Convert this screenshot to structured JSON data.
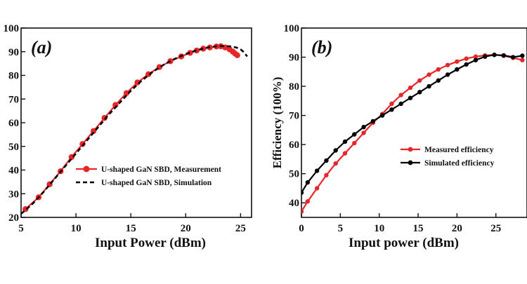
{
  "chart_data": [
    {
      "type": "line",
      "panel_label": "(a)",
      "xlabel": "Input Power (dBm)",
      "ylabel": "",
      "xlim": [
        5,
        26
      ],
      "ylim": [
        20,
        100
      ],
      "x_ticks": [
        5,
        10,
        15,
        20,
        25
      ],
      "y_ticks": [
        20,
        30,
        40,
        50,
        60,
        70,
        80,
        90,
        100
      ],
      "grid": false,
      "legend_position": "center-right",
      "series": [
        {
          "name": "U-shaped GaN SBD, Measurement",
          "color": "#e8262a",
          "style": "solid-markers",
          "x": [
            5.4,
            6.6,
            7.6,
            8.6,
            9.6,
            10.6,
            11.6,
            12.6,
            13.6,
            14.6,
            15.6,
            16.6,
            17.6,
            18.6,
            19.6,
            20.4,
            21.0,
            21.6,
            22.2,
            22.8,
            23.2,
            23.6,
            24.0,
            24.3,
            24.5,
            24.7
          ],
          "y": [
            23.5,
            28.5,
            34,
            39.5,
            45.5,
            51,
            56.5,
            62,
            67.5,
            72.5,
            77,
            80.5,
            83.5,
            86,
            88,
            89.5,
            90.5,
            91.3,
            91.8,
            92.2,
            92.3,
            91.8,
            91.0,
            90.0,
            89.2,
            88.5
          ]
        },
        {
          "name": "U-shaped GaN SBD, Simulation",
          "color": "#000000",
          "style": "dashed",
          "x": [
            5.0,
            6.0,
            7.0,
            8.0,
            9.0,
            10.0,
            11.0,
            12.0,
            13.0,
            14.0,
            15.0,
            16.0,
            17.0,
            18.0,
            19.0,
            20.0,
            21.0,
            22.0,
            23.0,
            24.0,
            24.6,
            25.0,
            25.3,
            25.6
          ],
          "y": [
            21.5,
            25.5,
            30.5,
            36,
            41.5,
            47,
            52.5,
            58,
            63.5,
            68.5,
            73.5,
            77.8,
            81.5,
            84.5,
            87,
            89,
            90.6,
            91.8,
            92.4,
            92.3,
            91.8,
            91.0,
            89.8,
            88.0
          ]
        }
      ]
    },
    {
      "type": "line",
      "panel_label": "(b)",
      "xlabel": "Input power (dBm)",
      "ylabel": "Efficiency (100%)",
      "xlim": [
        0,
        29
      ],
      "ylim": [
        35,
        100
      ],
      "x_ticks": [
        0,
        5,
        10,
        15,
        20,
        25
      ],
      "y_ticks": [
        40,
        50,
        60,
        70,
        80,
        90,
        100
      ],
      "grid": false,
      "legend_position": "center-right",
      "series": [
        {
          "name": "Measured efficiency",
          "color": "#e8262a",
          "style": "solid-markers",
          "x": [
            0,
            0.8,
            2.0,
            3.2,
            4.4,
            5.6,
            6.8,
            8.0,
            9.2,
            10.4,
            11.6,
            12.8,
            14.0,
            15.2,
            16.4,
            17.6,
            18.8,
            20.0,
            21.2,
            22.4,
            23.6,
            24.8,
            26.0,
            27.2,
            28.4
          ],
          "y": [
            37,
            40.5,
            45,
            49.5,
            53.5,
            57,
            60.5,
            64,
            67.5,
            70.5,
            74,
            77,
            79.5,
            82,
            84,
            85.8,
            87.3,
            88.5,
            89.5,
            90.2,
            90.6,
            90.8,
            90.5,
            89.8,
            89.0
          ]
        },
        {
          "name": "Simulated efficiency",
          "color": "#000000",
          "style": "solid-markers",
          "x": [
            0,
            0.8,
            2.0,
            3.2,
            4.4,
            5.6,
            6.8,
            8.0,
            9.2,
            10.4,
            11.6,
            12.8,
            14.0,
            15.2,
            16.4,
            17.6,
            18.8,
            20.0,
            21.2,
            22.4,
            23.6,
            24.8,
            26.0,
            27.2,
            28.4
          ],
          "y": [
            43.5,
            47,
            51,
            54.5,
            58,
            61,
            63.5,
            66,
            68,
            70,
            72,
            74,
            76,
            78,
            80,
            82,
            84,
            85.8,
            87.5,
            89,
            90.2,
            90.8,
            90.6,
            90.0,
            90.5
          ]
        }
      ]
    }
  ]
}
